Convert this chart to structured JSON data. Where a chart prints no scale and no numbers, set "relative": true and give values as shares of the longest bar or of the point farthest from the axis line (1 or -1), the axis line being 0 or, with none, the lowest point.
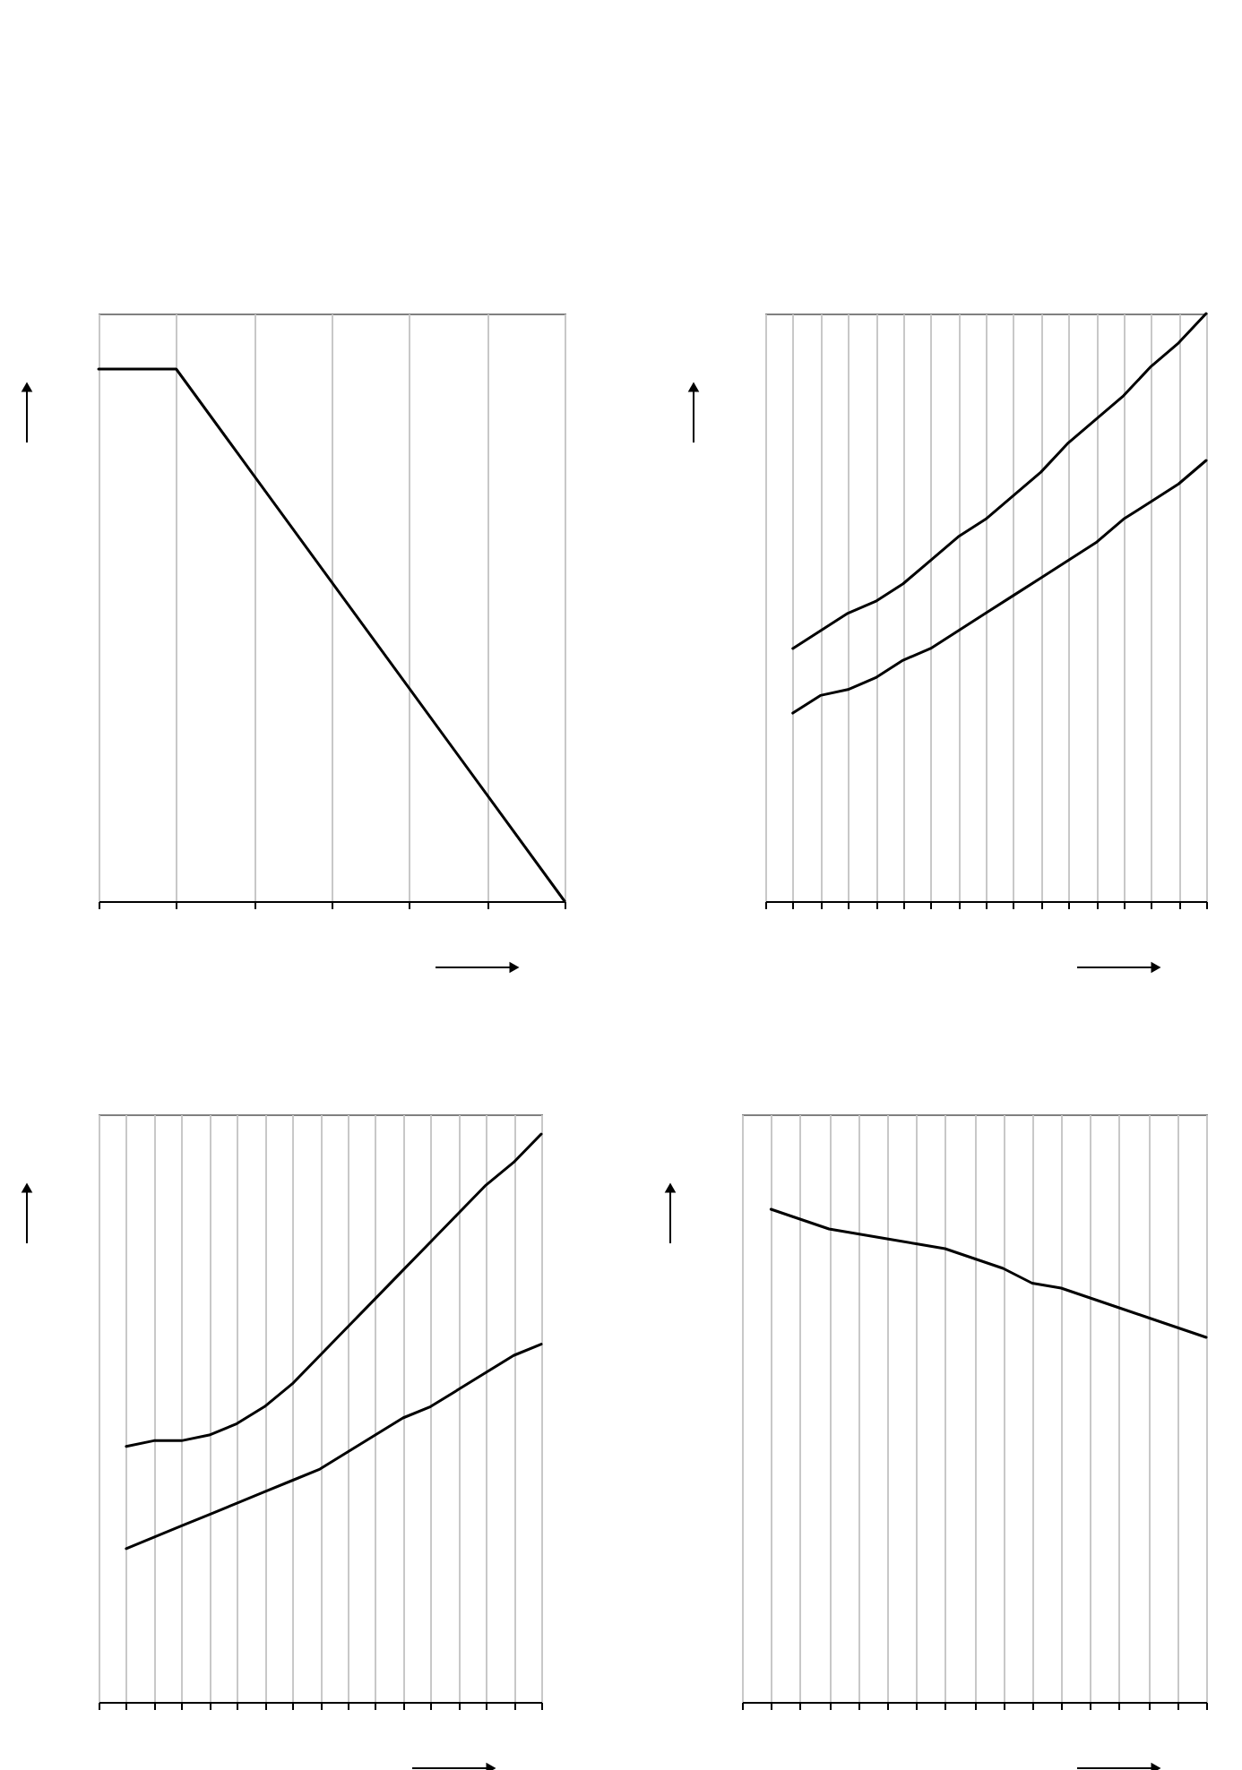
{
  "chart_data": [
    {
      "type": "line",
      "relative": true,
      "grid": "x",
      "categories": [
        null,
        null,
        null,
        null,
        null,
        null,
        null
      ],
      "series": [
        {
          "color": "#000000",
          "values": [
            1,
            1,
            0.8,
            0.6,
            0.4,
            0.2,
            0
          ]
        }
      ]
    },
    {
      "type": "line",
      "relative": true,
      "grid": "x",
      "categories": [
        null,
        null,
        null,
        null,
        null,
        null,
        null,
        null,
        null,
        null,
        null,
        null,
        null,
        null,
        null,
        null,
        null
      ],
      "series": [
        {
          "color": "#000000",
          "values": [
            null,
            0.43,
            0.46,
            0.49,
            0.51,
            0.54,
            0.58,
            0.62,
            0.65,
            0.69,
            0.73,
            0.78,
            0.82,
            0.86,
            0.91,
            0.95,
            1
          ]
        },
        {
          "color": "#000000",
          "values": [
            null,
            0.32,
            0.35,
            0.36,
            0.38,
            0.41,
            0.43,
            0.46,
            0.49,
            0.52,
            0.55,
            0.58,
            0.61,
            0.65,
            0.68,
            0.71,
            0.75
          ]
        }
      ]
    },
    {
      "type": "line",
      "relative": true,
      "grid": "x",
      "categories": [
        null,
        null,
        null,
        null,
        null,
        null,
        null,
        null,
        null,
        null,
        null,
        null,
        null,
        null,
        null,
        null,
        null
      ],
      "series": [
        {
          "color": "#000000",
          "values": [
            null,
            0.45,
            0.46,
            0.46,
            0.47,
            0.49,
            0.52,
            0.56,
            0.61,
            0.66,
            0.71,
            0.76,
            0.81,
            0.86,
            0.91,
            0.95,
            1
          ]
        },
        {
          "color": "#000000",
          "values": [
            null,
            0.27,
            0.29,
            0.31,
            0.33,
            0.35,
            0.37,
            0.39,
            0.41,
            0.44,
            0.47,
            0.5,
            0.52,
            0.55,
            0.58,
            0.61,
            0.63
          ]
        }
      ]
    },
    {
      "type": "line",
      "relative": true,
      "grid": "x",
      "categories": [
        null,
        null,
        null,
        null,
        null,
        null,
        null,
        null,
        null,
        null,
        null,
        null,
        null,
        null,
        null,
        null,
        null
      ],
      "series": [
        {
          "color": "#000000",
          "values": [
            null,
            1,
            0.98,
            0.96,
            0.95,
            0.94,
            0.93,
            0.92,
            0.9,
            0.88,
            0.85,
            0.84,
            0.82,
            0.8,
            0.78,
            0.76,
            0.74
          ]
        }
      ]
    }
  ]
}
